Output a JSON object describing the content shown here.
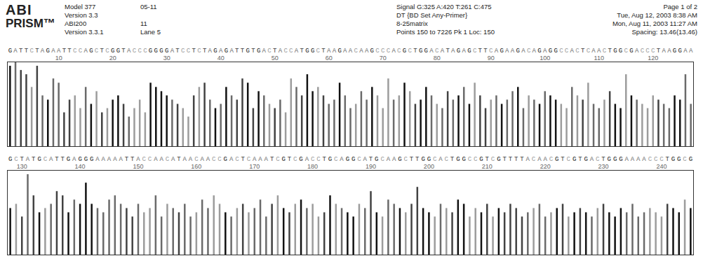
{
  "header": {
    "logo": [
      "ABI",
      "PRISM™"
    ],
    "left": [
      "Model 377",
      "Version 3.3",
      "ABI200",
      "Version 3.3.1"
    ],
    "left2": [
      "05-11",
      null,
      "11",
      "Lane 5"
    ],
    "center": [
      "Signal G:325 A:420 T:261 C:475",
      "DT {BD Set Any-Primer}",
      "8-25matrix",
      "Points 150 to 7226  Pk 1 Loc: 150"
    ],
    "right": [
      "Page 1 of 2",
      "Tue, Aug 12, 2003 8:38 AM",
      "Mon, Aug 11, 2003 11:27 AM",
      "Spacing: 13.46(13.46)"
    ]
  },
  "chart_data": [
    {
      "type": "chromatogram",
      "bases": "GATTCTAGAATTCCAGCTCGGTACCCGGGGATCCTCTAGAGATTGTGACTACCATGGCTAAGAACAAGCCCACGCTGGACATAGAGCTTCAGAAGACAGAGGCCACTCAACTGGCGACCCTAAGGAA",
      "x": [
        1,
        2,
        3,
        4,
        5,
        6,
        7,
        8,
        9,
        10,
        11,
        12,
        13,
        14,
        15,
        16,
        17,
        18,
        19,
        20,
        21,
        22,
        23,
        24,
        25,
        26,
        27,
        28,
        29,
        30,
        31,
        32,
        33,
        34,
        35,
        36,
        37,
        38,
        39,
        40,
        41,
        42,
        43,
        44,
        45,
        46,
        47,
        48,
        49,
        50,
        51,
        52,
        53,
        54,
        55,
        56,
        57,
        58,
        59,
        60,
        61,
        62,
        63,
        64,
        65,
        66,
        67,
        68,
        69,
        70,
        71,
        72,
        73,
        74,
        75,
        76,
        77,
        78,
        79,
        80,
        81,
        82,
        83,
        84,
        85,
        86,
        87,
        88,
        89,
        90,
        91,
        92,
        93,
        94,
        95,
        96,
        97,
        98,
        99,
        100,
        101,
        102,
        103,
        104,
        105,
        106,
        107,
        108,
        109,
        110,
        111,
        112,
        113,
        114,
        115,
        116,
        117,
        118,
        119,
        120,
        121,
        122,
        123,
        124,
        125,
        126,
        127
      ],
      "values": [
        95,
        100,
        90,
        85,
        70,
        95,
        60,
        55,
        80,
        75,
        40,
        55,
        60,
        45,
        70,
        50,
        65,
        40,
        45,
        55,
        60,
        50,
        35,
        45,
        55,
        40,
        75,
        70,
        65,
        60,
        55,
        50,
        45,
        35,
        60,
        70,
        75,
        55,
        45,
        50,
        70,
        60,
        55,
        80,
        75,
        45,
        65,
        60,
        50,
        45,
        55,
        40,
        80,
        70,
        60,
        85,
        65,
        70,
        60,
        50,
        55,
        75,
        60,
        45,
        50,
        65,
        55,
        70,
        60,
        45,
        80,
        55,
        60,
        75,
        65,
        50,
        55,
        70,
        60,
        50,
        45,
        65,
        55,
        60,
        70,
        50,
        75,
        60,
        45,
        55,
        60,
        50,
        55,
        65,
        70,
        45,
        60,
        55,
        50,
        65,
        60,
        55,
        50,
        45,
        70,
        60,
        55,
        75,
        50,
        45,
        55,
        65,
        50,
        45,
        85,
        60,
        55,
        50,
        45,
        60,
        55,
        50,
        45,
        60,
        55,
        85,
        50
      ],
      "xlim": [
        0.5,
        127.5
      ],
      "xticks": [
        10,
        20,
        30,
        40,
        50,
        60,
        70,
        80,
        90,
        100,
        110,
        120
      ],
      "ylim": [
        0,
        100
      ],
      "tick_labels": "x",
      "colors": {
        "A": "#6a6a6a",
        "C": "#9c9c9c",
        "G": "#111111",
        "T": "#424242"
      }
    },
    {
      "type": "chromatogram",
      "bases": "GCTATGCATTGAGGGAAAAATTACCAACATAACAACCGACTCAAATCGTCGACCTGCAGGCATGCAAGCTTGGCACTGGCCGTCGTTTTACAACGTCGTGACTGGGAAAACCCTGGCG",
      "x": [
        128,
        129,
        130,
        131,
        132,
        133,
        134,
        135,
        136,
        137,
        138,
        139,
        140,
        141,
        142,
        143,
        144,
        145,
        146,
        147,
        148,
        149,
        150,
        151,
        152,
        153,
        154,
        155,
        156,
        157,
        158,
        159,
        160,
        161,
        162,
        163,
        164,
        165,
        166,
        167,
        168,
        169,
        170,
        171,
        172,
        173,
        174,
        175,
        176,
        177,
        178,
        179,
        180,
        181,
        182,
        183,
        184,
        185,
        186,
        187,
        188,
        189,
        190,
        191,
        192,
        193,
        194,
        195,
        196,
        197,
        198,
        199,
        200,
        201,
        202,
        203,
        204,
        205,
        206,
        207,
        208,
        209,
        210,
        211,
        212,
        213,
        214,
        215,
        216,
        217,
        218,
        219,
        220,
        221,
        222,
        223,
        224,
        225,
        226,
        227,
        228,
        229,
        230,
        231,
        232,
        233,
        234,
        235,
        236,
        237,
        238,
        239,
        240,
        241,
        242,
        243,
        244,
        245
      ],
      "values": [
        55,
        60,
        45,
        95,
        70,
        50,
        55,
        60,
        75,
        70,
        50,
        65,
        60,
        85,
        60,
        55,
        50,
        65,
        70,
        60,
        55,
        45,
        60,
        50,
        55,
        70,
        45,
        60,
        55,
        50,
        60,
        45,
        50,
        65,
        55,
        70,
        60,
        50,
        45,
        55,
        60,
        50,
        55,
        65,
        45,
        60,
        70,
        55,
        50,
        60,
        65,
        55,
        60,
        45,
        50,
        70,
        60,
        55,
        50,
        45,
        60,
        55,
        75,
        50,
        45,
        65,
        60,
        55,
        50,
        60,
        80,
        55,
        50,
        45,
        60,
        55,
        50,
        65,
        60,
        45,
        55,
        50,
        60,
        45,
        55,
        50,
        60,
        55,
        45,
        50,
        55,
        60,
        45,
        50,
        55,
        60,
        45,
        50,
        55,
        50,
        45,
        55,
        60,
        50,
        45,
        55,
        50,
        60,
        45,
        50,
        55,
        50,
        45,
        60,
        55,
        50,
        65,
        55
      ],
      "xlim": [
        127.5,
        245.5
      ],
      "xticks": [
        130,
        140,
        150,
        160,
        170,
        180,
        190,
        200,
        210,
        220,
        230,
        240
      ],
      "ylim": [
        0,
        100
      ],
      "tick_labels": "x",
      "colors": {
        "A": "#6a6a6a",
        "C": "#9c9c9c",
        "G": "#111111",
        "T": "#424242"
      }
    }
  ]
}
